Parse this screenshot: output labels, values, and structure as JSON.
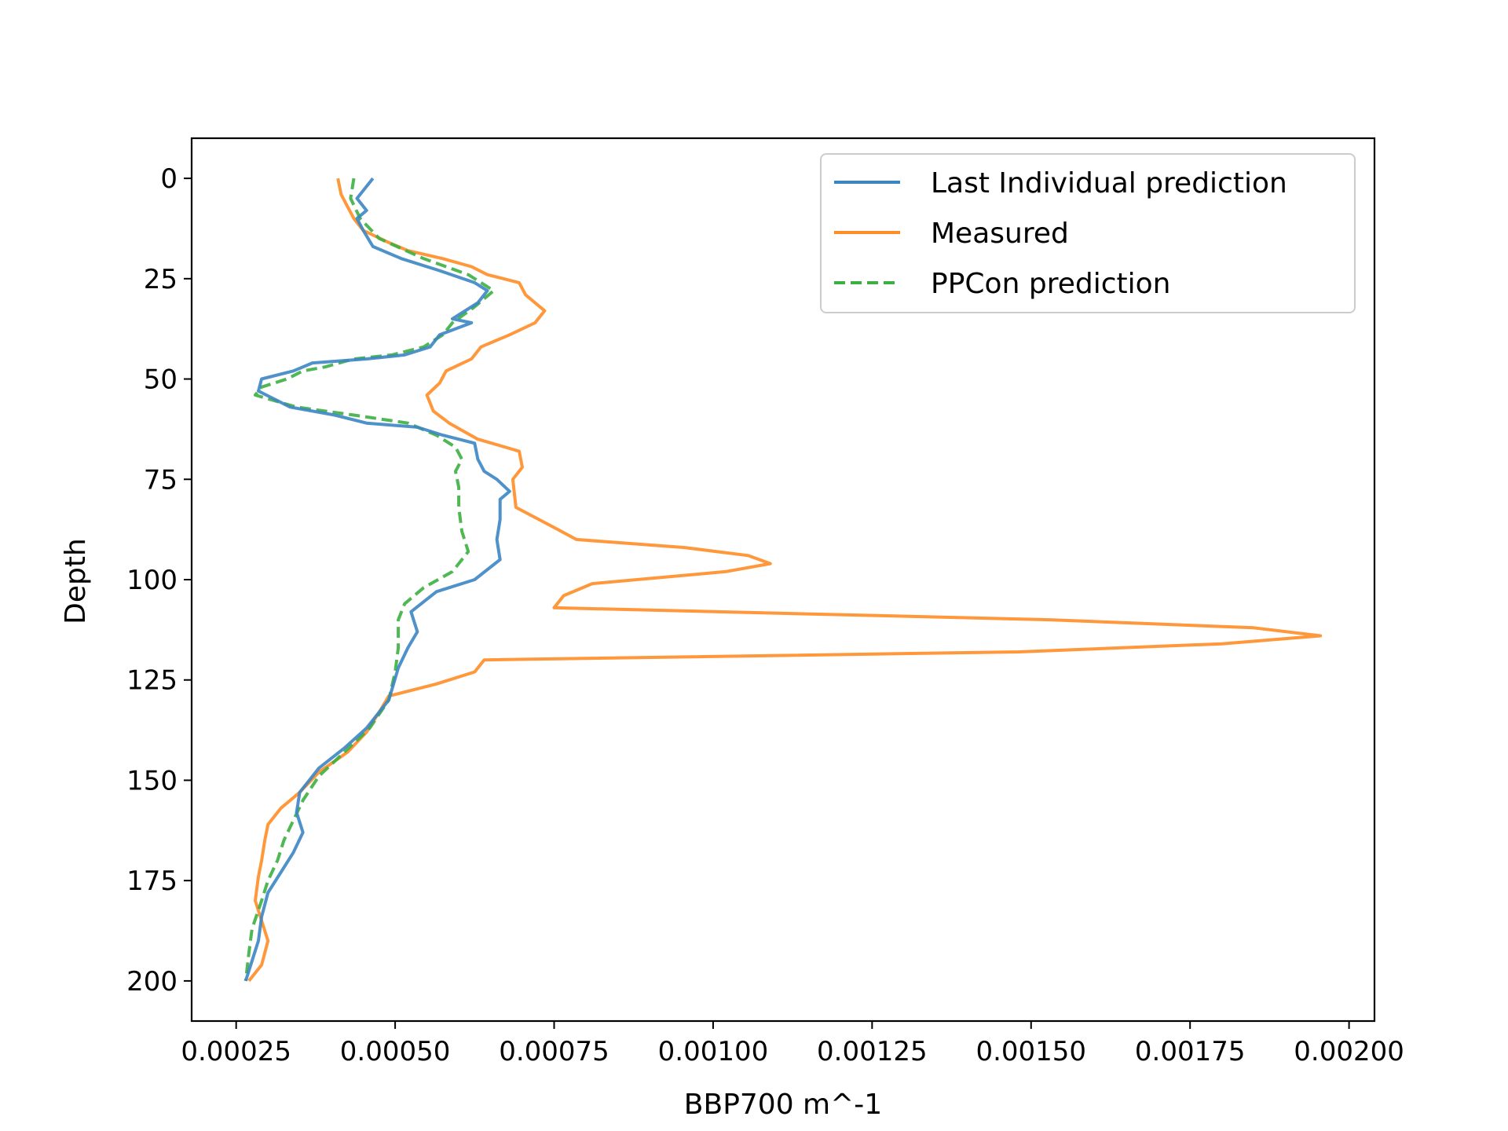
{
  "chart_data": {
    "type": "line",
    "title": "",
    "xlabel": "BBP700 m^-1",
    "ylabel": "Depth",
    "xlim": [
      0.00018,
      0.00204
    ],
    "ylim": [
      210,
      -10
    ],
    "y_inverted": true,
    "xticks": [
      0.00025,
      0.0005,
      0.00075,
      0.001,
      0.00125,
      0.0015,
      0.00175,
      0.002
    ],
    "xtick_labels": [
      "0.00025",
      "0.00050",
      "0.00075",
      "0.00100",
      "0.00125",
      "0.00150",
      "0.00175",
      "0.00200"
    ],
    "yticks": [
      0,
      25,
      50,
      75,
      100,
      125,
      150,
      175,
      200
    ],
    "ytick_labels": [
      "0",
      "25",
      "50",
      "75",
      "100",
      "125",
      "150",
      "175",
      "200"
    ],
    "grid": false,
    "legend_position": "top-right",
    "series": [
      {
        "name": "Last Individual prediction",
        "color": "#3c85c3",
        "style": "solid",
        "points": [
          [
            0.000465,
            0
          ],
          [
            0.00044,
            5
          ],
          [
            0.000455,
            8
          ],
          [
            0.00044,
            10
          ],
          [
            0.00045,
            13
          ],
          [
            0.000465,
            17
          ],
          [
            0.00051,
            20
          ],
          [
            0.00057,
            23
          ],
          [
            0.000625,
            26
          ],
          [
            0.000645,
            28
          ],
          [
            0.00063,
            31
          ],
          [
            0.00059,
            35
          ],
          [
            0.00062,
            36
          ],
          [
            0.00057,
            39
          ],
          [
            0.000555,
            42
          ],
          [
            0.000515,
            44
          ],
          [
            0.000455,
            45
          ],
          [
            0.00037,
            46
          ],
          [
            0.00034,
            48
          ],
          [
            0.00029,
            50
          ],
          [
            0.000285,
            53
          ],
          [
            0.000335,
            57
          ],
          [
            0.000405,
            59
          ],
          [
            0.000455,
            61
          ],
          [
            0.000535,
            62
          ],
          [
            0.000575,
            64
          ],
          [
            0.000625,
            66
          ],
          [
            0.00063,
            70
          ],
          [
            0.00064,
            73
          ],
          [
            0.00066,
            75
          ],
          [
            0.00068,
            78
          ],
          [
            0.000665,
            80
          ],
          [
            0.000665,
            85
          ],
          [
            0.00066,
            90
          ],
          [
            0.000665,
            95
          ],
          [
            0.000625,
            100
          ],
          [
            0.000565,
            103
          ],
          [
            0.000525,
            108
          ],
          [
            0.000535,
            113
          ],
          [
            0.00052,
            117
          ],
          [
            0.000505,
            122
          ],
          [
            0.00049,
            130
          ],
          [
            0.000455,
            137
          ],
          [
            0.00042,
            142
          ],
          [
            0.00038,
            147
          ],
          [
            0.00035,
            153
          ],
          [
            0.000345,
            158
          ],
          [
            0.000355,
            163
          ],
          [
            0.00034,
            168
          ],
          [
            0.00032,
            173
          ],
          [
            0.0003,
            178
          ],
          [
            0.00029,
            184
          ],
          [
            0.000285,
            190
          ],
          [
            0.000275,
            195
          ],
          [
            0.000265,
            200
          ]
        ]
      },
      {
        "name": "Measured",
        "color": "#ff8c26",
        "style": "solid",
        "points": [
          [
            0.00041,
            0
          ],
          [
            0.000415,
            4
          ],
          [
            0.000425,
            7
          ],
          [
            0.000435,
            10
          ],
          [
            0.00045,
            13
          ],
          [
            0.00049,
            16
          ],
          [
            0.00052,
            18
          ],
          [
            0.000575,
            20
          ],
          [
            0.00062,
            22
          ],
          [
            0.000645,
            24
          ],
          [
            0.000695,
            26
          ],
          [
            0.000705,
            29
          ],
          [
            0.000735,
            33
          ],
          [
            0.00072,
            36
          ],
          [
            0.00068,
            39
          ],
          [
            0.000635,
            42
          ],
          [
            0.00062,
            45
          ],
          [
            0.00058,
            48
          ],
          [
            0.00057,
            51
          ],
          [
            0.00055,
            54
          ],
          [
            0.00056,
            58
          ],
          [
            0.000585,
            61
          ],
          [
            0.00063,
            65
          ],
          [
            0.000695,
            68
          ],
          [
            0.0007,
            72
          ],
          [
            0.000685,
            75
          ],
          [
            0.00069,
            82
          ],
          [
            0.00075,
            87
          ],
          [
            0.000785,
            90
          ],
          [
            0.000955,
            92
          ],
          [
            0.001055,
            94
          ],
          [
            0.00109,
            96
          ],
          [
            0.00102,
            98
          ],
          [
            0.00081,
            101
          ],
          [
            0.000765,
            104
          ],
          [
            0.00075,
            107
          ],
          [
            0.00153,
            110
          ],
          [
            0.00185,
            112
          ],
          [
            0.001955,
            114
          ],
          [
            0.0018,
            116
          ],
          [
            0.00148,
            118
          ],
          [
            0.00064,
            120
          ],
          [
            0.000625,
            123
          ],
          [
            0.000565,
            126
          ],
          [
            0.00049,
            129
          ],
          [
            0.000475,
            133
          ],
          [
            0.000455,
            138
          ],
          [
            0.000425,
            143
          ],
          [
            0.00038,
            148
          ],
          [
            0.00035,
            153
          ],
          [
            0.00032,
            157
          ],
          [
            0.0003,
            161
          ],
          [
            0.000295,
            165
          ],
          [
            0.00029,
            170
          ],
          [
            0.000285,
            174
          ],
          [
            0.00028,
            180
          ],
          [
            0.00029,
            185
          ],
          [
            0.0003,
            190
          ],
          [
            0.00029,
            196
          ],
          [
            0.00027,
            200
          ]
        ]
      },
      {
        "name": "PPCon prediction",
        "color": "#3cb043",
        "style": "dashed",
        "points": [
          [
            0.000435,
            0
          ],
          [
            0.00043,
            5
          ],
          [
            0.000445,
            10
          ],
          [
            0.000475,
            15
          ],
          [
            0.000545,
            20
          ],
          [
            0.000615,
            24
          ],
          [
            0.000655,
            28
          ],
          [
            0.000625,
            32
          ],
          [
            0.00059,
            36
          ],
          [
            0.000575,
            39
          ],
          [
            0.000545,
            42
          ],
          [
            0.000495,
            44
          ],
          [
            0.000435,
            45
          ],
          [
            0.00039,
            47
          ],
          [
            0.000355,
            48
          ],
          [
            0.00033,
            50
          ],
          [
            0.00029,
            52
          ],
          [
            0.00028,
            54
          ],
          [
            0.000345,
            57
          ],
          [
            0.000435,
            59
          ],
          [
            0.00052,
            61
          ],
          [
            0.000565,
            64
          ],
          [
            0.000595,
            67
          ],
          [
            0.000605,
            70
          ],
          [
            0.000595,
            73
          ],
          [
            0.0006,
            77
          ],
          [
            0.0006,
            82
          ],
          [
            0.000605,
            88
          ],
          [
            0.000615,
            93
          ],
          [
            0.00059,
            98
          ],
          [
            0.000545,
            102
          ],
          [
            0.000515,
            106
          ],
          [
            0.000505,
            110
          ],
          [
            0.000505,
            117
          ],
          [
            0.0005,
            123
          ],
          [
            0.00049,
            130
          ],
          [
            0.00046,
            137
          ],
          [
            0.00042,
            143
          ],
          [
            0.00038,
            149
          ],
          [
            0.000355,
            155
          ],
          [
            0.00034,
            160
          ],
          [
            0.000325,
            165
          ],
          [
            0.000315,
            170
          ],
          [
            0.0003,
            175
          ],
          [
            0.00029,
            180
          ],
          [
            0.000275,
            187
          ],
          [
            0.00027,
            193
          ],
          [
            0.000265,
            200
          ]
        ]
      }
    ]
  }
}
